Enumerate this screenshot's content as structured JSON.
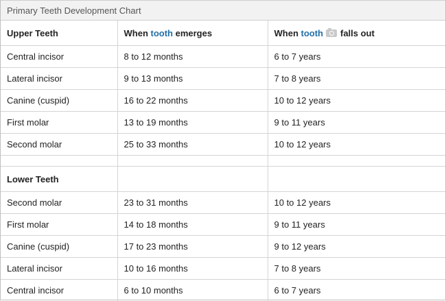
{
  "caption": "Primary Teeth Development Chart",
  "headers": {
    "col1": "Upper Teeth",
    "col2_pre": "When ",
    "col2_hl": "tooth",
    "col2_post": " emerges",
    "col3_pre": "When ",
    "col3_hl": "tooth",
    "col3_post": "falls out",
    "camera_icon": "camera-icon"
  },
  "upper": [
    {
      "tooth": "Central incisor",
      "emerges": "8 to 12 months",
      "falls_out": "6 to 7 years"
    },
    {
      "tooth": "Lateral incisor",
      "emerges": "9 to 13 months",
      "falls_out": "7 to 8 years"
    },
    {
      "tooth": "Canine (cuspid)",
      "emerges": "16 to 22 months",
      "falls_out": "10 to 12 years"
    },
    {
      "tooth": "First molar",
      "emerges": "13 to 19 months",
      "falls_out": "9 to 11 years"
    },
    {
      "tooth": "Second molar",
      "emerges": "25 to 33 months",
      "falls_out": "10 to 12 years"
    }
  ],
  "lower_label": "Lower Teeth",
  "lower": [
    {
      "tooth": "Second molar",
      "emerges": "23 to 31 months",
      "falls_out": "10 to 12 years"
    },
    {
      "tooth": "First molar",
      "emerges": "14 to 18 months",
      "falls_out": "9 to 11 years"
    },
    {
      "tooth": "Canine (cuspid)",
      "emerges": "17 to 23 months",
      "falls_out": "9 to 12 years"
    },
    {
      "tooth": "Lateral incisor",
      "emerges": "10 to 16 months",
      "falls_out": "7 to 8 years"
    },
    {
      "tooth": "Central incisor",
      "emerges": "6 to 10 months",
      "falls_out": "6 to 7 years"
    }
  ]
}
